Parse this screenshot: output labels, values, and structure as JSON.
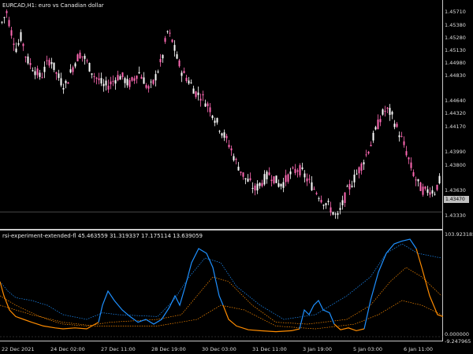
{
  "main_title": "EURCAD,H1:  euro vs Canadian dollar",
  "indicator_title": "rsi-experiment-extended-fl 45.463559 31.319337 17.175114 13.639059",
  "price_axis": [
    "1.45710",
    "1.45380",
    "1.45280",
    "1.45130",
    "1.44980",
    "1.44830",
    "1.44640",
    "1.44320",
    "1.44170",
    "1.43990",
    "1.43800",
    "1.43630",
    "1.43480",
    "1.43330"
  ],
  "current_price": "1.43470",
  "indicator_axis": [
    "103.923185",
    "0.000000",
    "-9.247965"
  ],
  "time_axis": [
    "22 Dec 2021",
    "24 Dec 02:00",
    "27 Dec 11:00",
    "28 Dec 19:00",
    "30 Dec 03:00",
    "31 Dec 11:00",
    "3 Jan 19:00",
    "5 Jan 03:00",
    "6 Jan 11:00"
  ],
  "colors": {
    "bg": "#000000",
    "candle_up": "#ffffff",
    "candle_down": "#ff69b4",
    "blue": "#1e90ff",
    "orange": "#ff8c00"
  },
  "chart_data": {
    "type": "candlestick",
    "close_path": [
      1.456,
      1.4572,
      1.4548,
      1.453,
      1.4545,
      1.452,
      1.4512,
      1.4505,
      1.4498,
      1.451,
      1.452,
      1.4505,
      1.4495,
      1.4488,
      1.4502,
      1.4515,
      1.4525,
      1.452,
      1.451,
      1.45,
      1.4495,
      1.4488,
      1.449,
      1.4495,
      1.45,
      1.4498,
      1.449,
      1.4495,
      1.4505,
      1.4498,
      1.4485,
      1.449,
      1.4505,
      1.452,
      1.455,
      1.454,
      1.452,
      1.4505,
      1.4498,
      1.449,
      1.448,
      1.4478,
      1.447,
      1.4462,
      1.445,
      1.444,
      1.443,
      1.442,
      1.4405,
      1.4395,
      1.4385,
      1.438,
      1.4372,
      1.4378,
      1.4384,
      1.439,
      1.4385,
      1.4378,
      1.438,
      1.4388,
      1.4392,
      1.4396,
      1.439,
      1.4382,
      1.4375,
      1.4368,
      1.436,
      1.4355,
      1.4348,
      1.434,
      1.4355,
      1.437,
      1.438,
      1.439,
      1.44,
      1.4412,
      1.4425,
      1.444,
      1.4455,
      1.4462,
      1.4458,
      1.4445,
      1.4432,
      1.4418,
      1.44,
      1.4385,
      1.4375,
      1.437,
      1.4372,
      1.437,
      1.4382
    ]
  }
}
